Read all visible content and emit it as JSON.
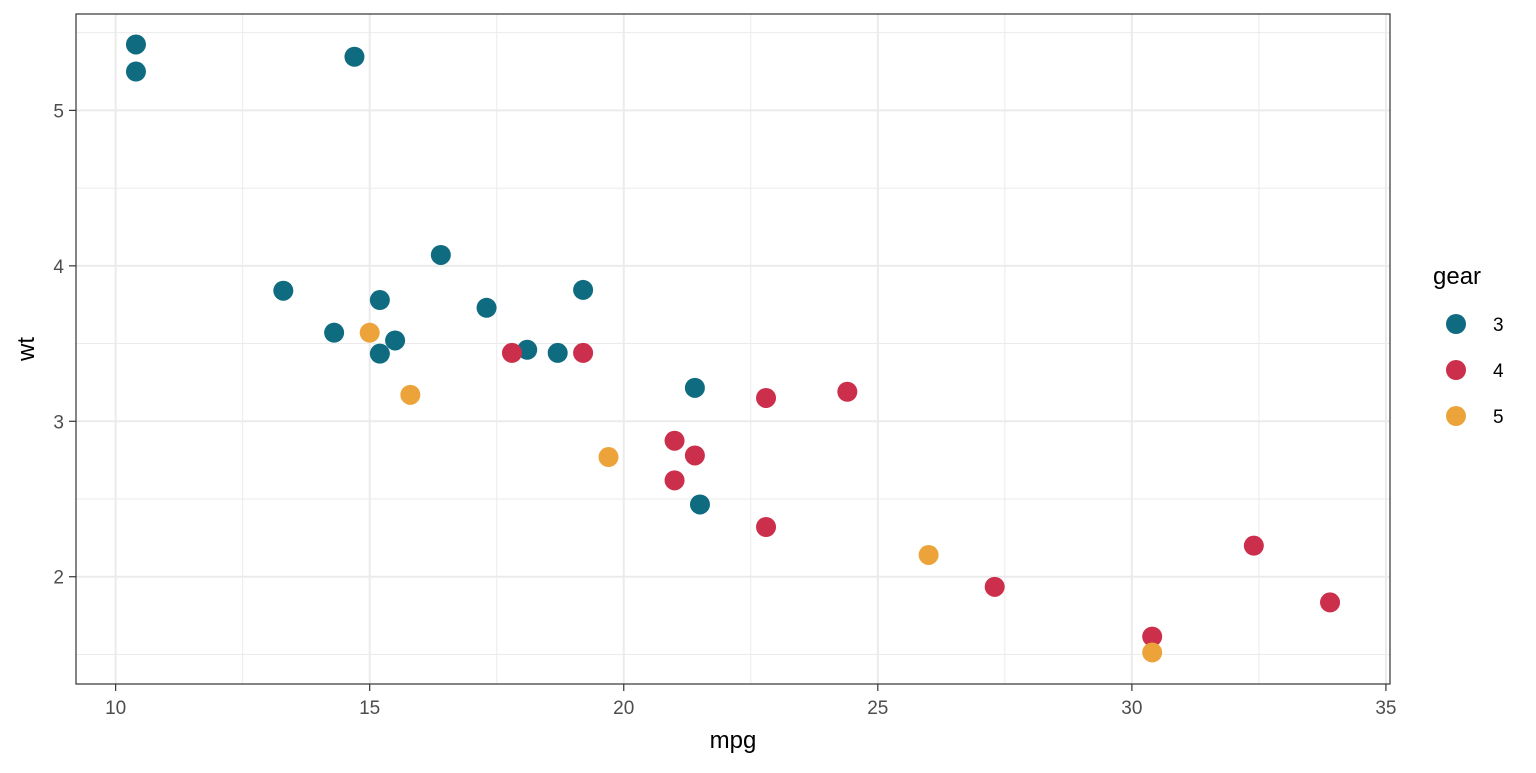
{
  "chart_data": {
    "type": "scatter",
    "title": "",
    "xlabel": "mpg",
    "ylabel": "wt",
    "xlim": [
      9.22,
      35.08
    ],
    "ylim": [
      1.31,
      5.62
    ],
    "x_ticks": [
      10,
      15,
      20,
      25,
      30,
      35
    ],
    "y_ticks": [
      2,
      3,
      4,
      5
    ],
    "grid": true,
    "legend": {
      "title": "gear",
      "placement": "right"
    },
    "series": [
      {
        "name": "3",
        "color": "#0f6b80",
        "points": [
          {
            "x": 21.4,
            "y": 3.215
          },
          {
            "x": 18.7,
            "y": 3.44
          },
          {
            "x": 18.1,
            "y": 3.46
          },
          {
            "x": 14.3,
            "y": 3.57
          },
          {
            "x": 16.4,
            "y": 4.07
          },
          {
            "x": 17.3,
            "y": 3.73
          },
          {
            "x": 15.2,
            "y": 3.78
          },
          {
            "x": 10.4,
            "y": 5.25
          },
          {
            "x": 10.4,
            "y": 5.424
          },
          {
            "x": 14.7,
            "y": 5.345
          },
          {
            "x": 21.5,
            "y": 2.465
          },
          {
            "x": 15.5,
            "y": 3.52
          },
          {
            "x": 15.2,
            "y": 3.435
          },
          {
            "x": 13.3,
            "y": 3.84
          },
          {
            "x": 19.2,
            "y": 3.845
          }
        ]
      },
      {
        "name": "4",
        "color": "#cc2f4b",
        "points": [
          {
            "x": 21.0,
            "y": 2.62
          },
          {
            "x": 21.0,
            "y": 2.875
          },
          {
            "x": 22.8,
            "y": 2.32
          },
          {
            "x": 24.4,
            "y": 3.19
          },
          {
            "x": 22.8,
            "y": 3.15
          },
          {
            "x": 19.2,
            "y": 3.44
          },
          {
            "x": 17.8,
            "y": 3.44
          },
          {
            "x": 32.4,
            "y": 2.2
          },
          {
            "x": 30.4,
            "y": 1.615
          },
          {
            "x": 33.9,
            "y": 1.835
          },
          {
            "x": 27.3,
            "y": 1.935
          },
          {
            "x": 21.4,
            "y": 2.78
          }
        ]
      },
      {
        "name": "5",
        "color": "#eca43a",
        "points": [
          {
            "x": 26.0,
            "y": 2.14
          },
          {
            "x": 30.4,
            "y": 1.513
          },
          {
            "x": 15.8,
            "y": 3.17
          },
          {
            "x": 19.7,
            "y": 2.77
          },
          {
            "x": 15.0,
            "y": 3.57
          }
        ]
      }
    ]
  }
}
